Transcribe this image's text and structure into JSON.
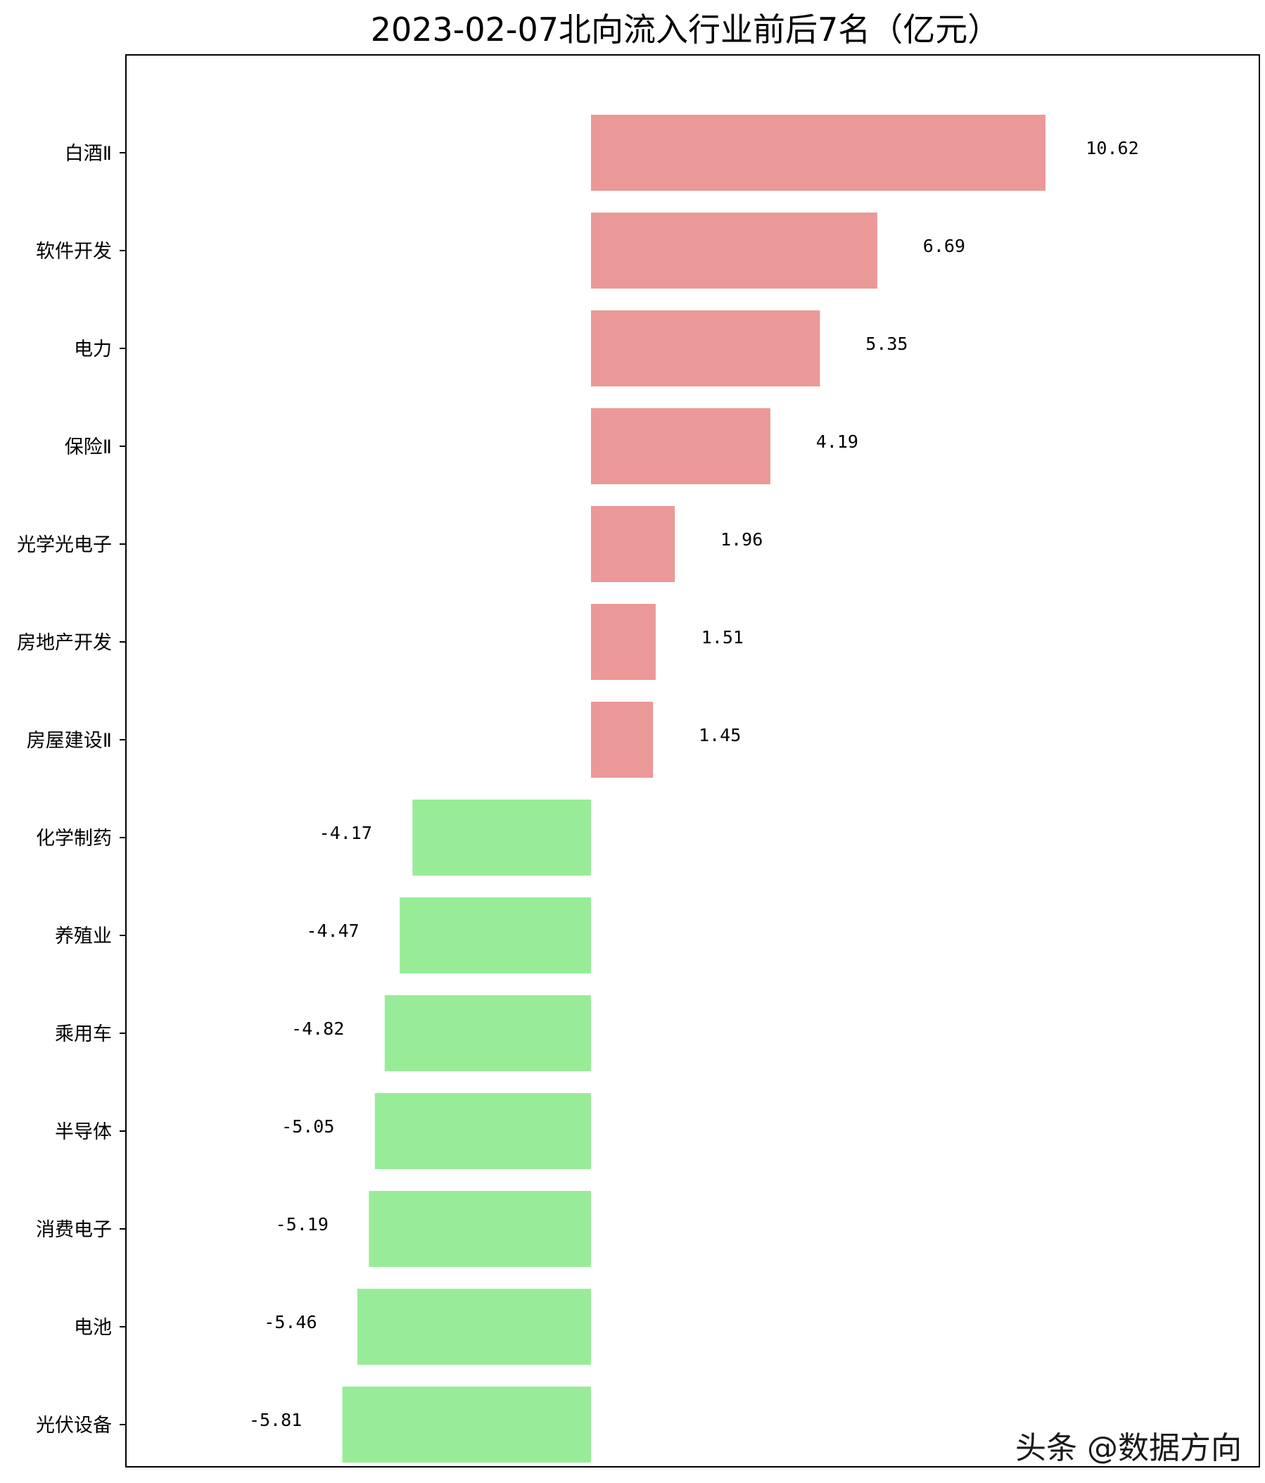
{
  "chart_data": {
    "type": "bar",
    "orientation": "horizontal",
    "title": "2023-02-07北向流入行业前后7名（亿元）",
    "xlabel": "",
    "ylabel": "",
    "categories": [
      "白酒Ⅱ",
      "软件开发",
      "电力",
      "保险Ⅱ",
      "光学光电子",
      "房地产开发",
      "房屋建设Ⅱ",
      "化学制药",
      "养殖业",
      "乘用车",
      "半导体",
      "消费电子",
      "电池",
      "光伏设备"
    ],
    "values": [
      10.62,
      6.69,
      5.35,
      4.19,
      1.96,
      1.51,
      1.45,
      -4.17,
      -4.47,
      -4.82,
      -5.05,
      -5.19,
      -5.46,
      -5.81
    ],
    "value_labels": [
      "10.62",
      "6.69",
      "5.35",
      "4.19",
      "1.96",
      "1.51",
      "1.45",
      "-4.17",
      "-4.47",
      "-4.82",
      "-5.05",
      "-5.19",
      "-5.46",
      "-5.81"
    ],
    "xlim": [
      -10.97,
      15.8
    ],
    "x_ticks_visible": false,
    "grid": false,
    "legend": false,
    "colors": {
      "positive": "#eb9898",
      "negative": "#98ec98"
    }
  },
  "watermark": {
    "text": "头条 @数据方向"
  }
}
